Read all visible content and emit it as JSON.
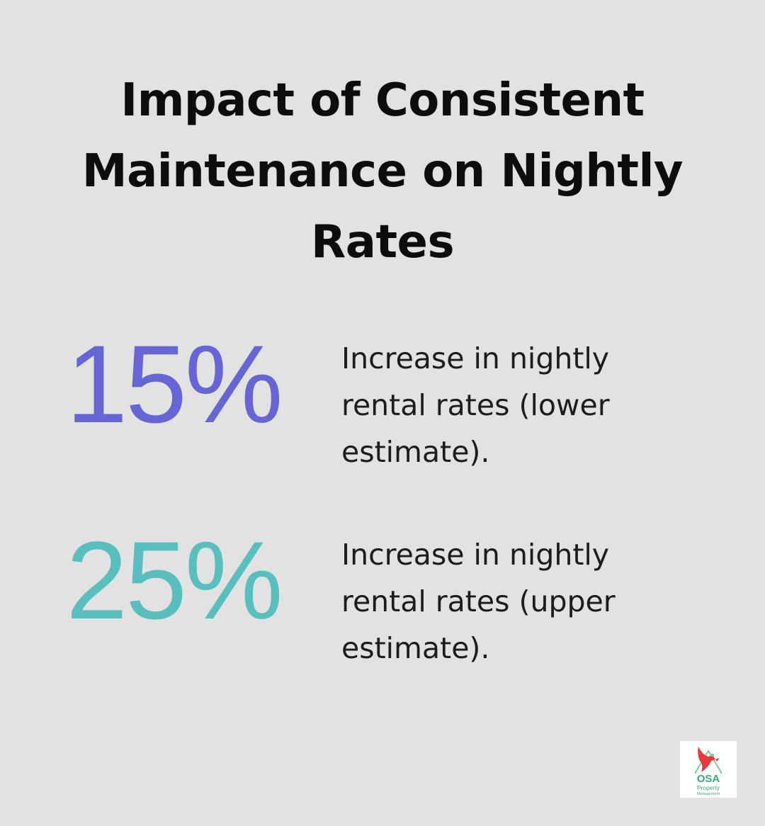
{
  "title": "Impact of Consistent Maintenance on Nightly Rates",
  "stats": [
    {
      "value": "15%",
      "description": "Increase in nightly\nrental rates (lower\nestimate).",
      "color": "#6565d5"
    },
    {
      "value": "25%",
      "description": "Increase in nightly\nrental rates (upper\nestimate).",
      "color": "#58bfbe"
    }
  ],
  "logo": {
    "name": "OSA",
    "line1": "Property",
    "line2": "Management",
    "icon": "bird-house-icon",
    "colors": {
      "bird": "#e63a3a",
      "house": "#7fc9a8",
      "text": "#3aa879"
    }
  },
  "colors": {
    "background": "#e1e2e1",
    "title": "#0d0d0d",
    "text": "#1c1c1c"
  }
}
